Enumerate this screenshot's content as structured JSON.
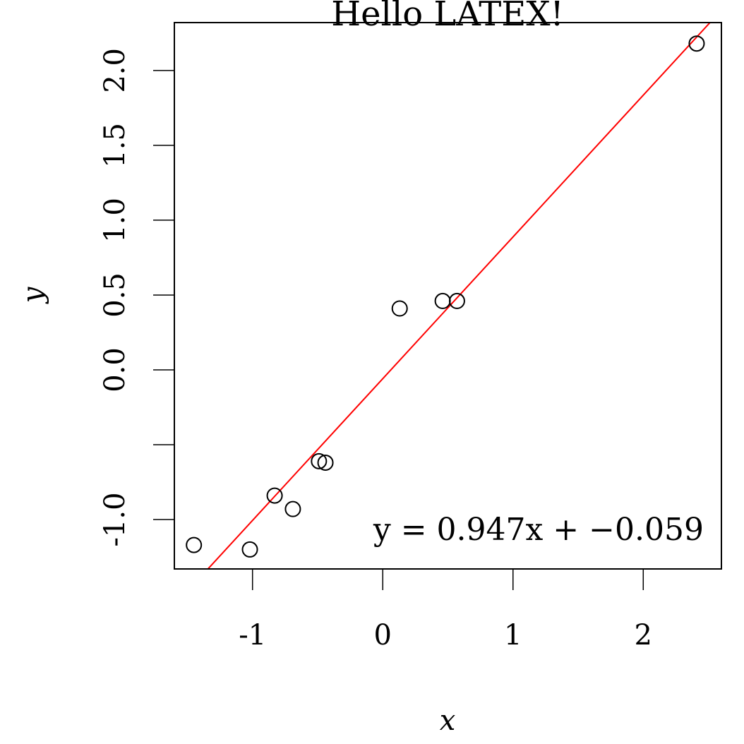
{
  "chart_data": {
    "type": "scatter",
    "title": "Hello LATEX!",
    "xlabel": "x",
    "ylabel": "y",
    "xlim": [
      -1.6,
      2.6
    ],
    "ylim": [
      -1.33,
      2.32
    ],
    "x_ticks": [
      -1,
      0,
      1,
      2
    ],
    "x_tick_labels": [
      "-1",
      "0",
      "1",
      "2"
    ],
    "y_ticks": [
      -1.0,
      -0.5,
      0.0,
      0.5,
      1.0,
      1.5,
      2.0
    ],
    "y_tick_labels": [
      "-1.0",
      "",
      "0.0",
      "0.5",
      "1.0",
      "1.5",
      "2.0"
    ],
    "grid": false,
    "points": [
      {
        "x": -1.45,
        "y": -1.17
      },
      {
        "x": -1.02,
        "y": -1.2
      },
      {
        "x": -0.83,
        "y": -0.84
      },
      {
        "x": -0.69,
        "y": -0.93
      },
      {
        "x": -0.49,
        "y": -0.61
      },
      {
        "x": -0.44,
        "y": -0.62
      },
      {
        "x": 0.13,
        "y": 0.41
      },
      {
        "x": 0.46,
        "y": 0.46
      },
      {
        "x": 0.57,
        "y": 0.46
      },
      {
        "x": 2.41,
        "y": 2.18
      }
    ],
    "fit_line": {
      "slope": 0.947,
      "intercept": -0.059,
      "color": "#ff0000"
    },
    "annotation": "y = 0.947x + −0.059"
  }
}
